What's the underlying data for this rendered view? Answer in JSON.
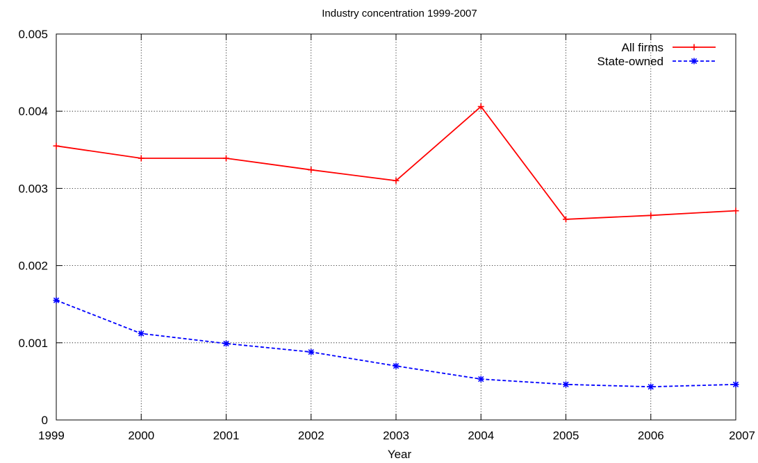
{
  "chart_data": {
    "type": "line",
    "title": "Industry concentration 1999-2007",
    "xlabel": "Year",
    "ylabel": "",
    "x": [
      1999,
      2000,
      2001,
      2002,
      2003,
      2004,
      2005,
      2006,
      2007
    ],
    "x_tick_labels": [
      "1999",
      "2000",
      "2001",
      "2002",
      "2003",
      "2004",
      "2005",
      "2006",
      "2007"
    ],
    "xlim": [
      1999,
      2007
    ],
    "ylim": [
      0,
      0.005
    ],
    "y_ticks": [
      0,
      0.001,
      0.002,
      0.003,
      0.004,
      0.005
    ],
    "y_tick_labels": [
      "0",
      "0.001",
      "0.002",
      "0.003",
      "0.004",
      "0.005"
    ],
    "grid": true,
    "legend_position": "top-right",
    "series": [
      {
        "name": "All firms",
        "color": "#ff0000",
        "line_style": "solid",
        "marker": "plus",
        "values": [
          0.00355,
          0.00339,
          0.00339,
          0.00324,
          0.0031,
          0.00406,
          0.0026,
          0.00265,
          0.00271
        ]
      },
      {
        "name": "State-owned",
        "color": "#0000ff",
        "line_style": "dashed",
        "marker": "star",
        "values": [
          0.00155,
          0.00112,
          0.00099,
          0.00088,
          0.0007,
          0.00053,
          0.00046,
          0.00043,
          0.00046
        ]
      }
    ]
  }
}
